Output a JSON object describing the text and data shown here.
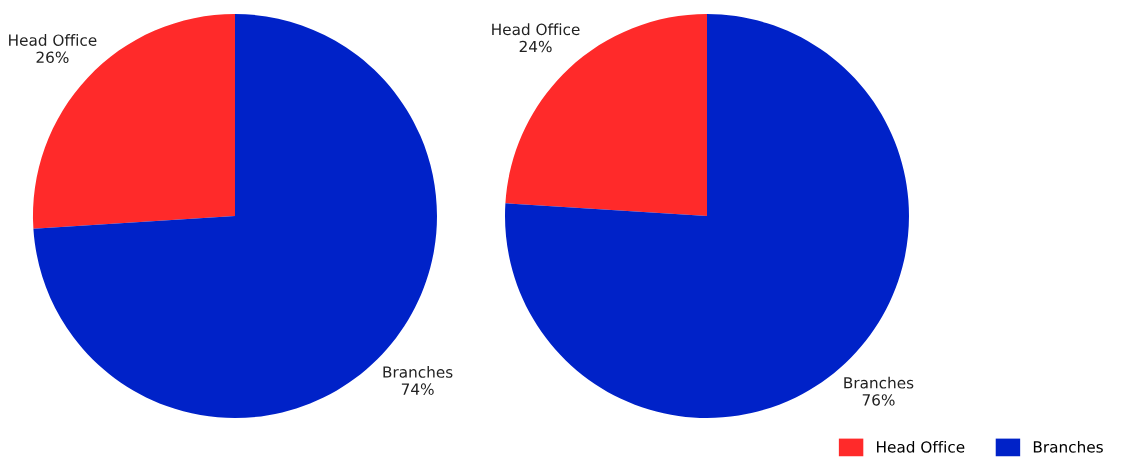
{
  "chart_data": [
    {
      "type": "pie",
      "categories": [
        "Head Office",
        "Branches"
      ],
      "values": [
        26,
        74
      ],
      "value_labels": [
        "26%",
        "74%"
      ],
      "colors": [
        "#ff2a2a",
        "#0022c8"
      ],
      "legend": false
    },
    {
      "type": "pie",
      "categories": [
        "Head Office",
        "Branches"
      ],
      "values": [
        24,
        76
      ],
      "value_labels": [
        "24%",
        "76%"
      ],
      "colors": [
        "#ff2a2a",
        "#0022c8"
      ],
      "legend": "bottom right"
    }
  ]
}
